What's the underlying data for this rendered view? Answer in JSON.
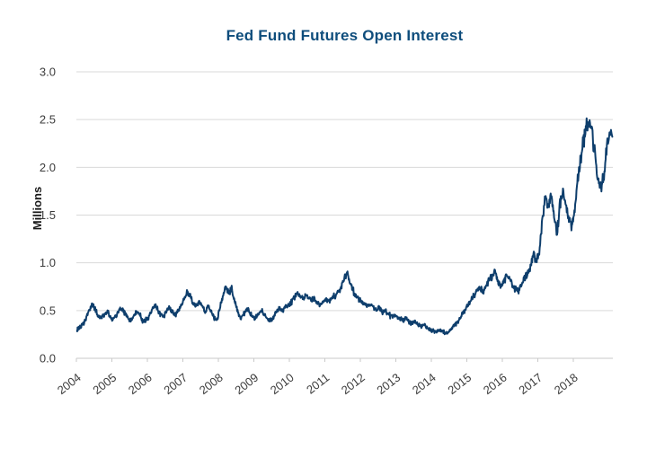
{
  "title": "Fed Fund Futures Open Interest",
  "colors": {
    "line": "#0e3e6c",
    "title": "#0e4d7c",
    "grid": "#d9d9d9",
    "axis": "#c9c9c9",
    "tick_text": "#3b3b3b"
  },
  "chart_data": {
    "type": "line",
    "title": "Fed Fund Futures Open Interest",
    "xlabel": "",
    "ylabel": "Millions",
    "ylim": [
      0.0,
      3.0
    ],
    "xlim": [
      2004,
      2019.1
    ],
    "y_ticks": [
      "0.0",
      "0.5",
      "1.0",
      "1.5",
      "2.0",
      "2.5",
      "3.0"
    ],
    "x_ticks": [
      "2004",
      "2005",
      "2006",
      "2007",
      "2008",
      "2009",
      "2010",
      "2011",
      "2012",
      "2013",
      "2014",
      "2015",
      "2016",
      "2017",
      "2018"
    ],
    "grid": "horizontal",
    "legend": "none",
    "series": [
      {
        "name": "Fed Fund Futures Open Interest (millions of contracts)",
        "start_year": 2004,
        "cadence": "monthly",
        "monthly_values": [
          0.3,
          0.33,
          0.37,
          0.44,
          0.52,
          0.56,
          0.5,
          0.44,
          0.42,
          0.46,
          0.48,
          0.43,
          0.41,
          0.45,
          0.5,
          0.52,
          0.46,
          0.41,
          0.4,
          0.45,
          0.49,
          0.46,
          0.37,
          0.41,
          0.44,
          0.5,
          0.55,
          0.51,
          0.46,
          0.44,
          0.5,
          0.54,
          0.48,
          0.45,
          0.5,
          0.56,
          0.62,
          0.7,
          0.64,
          0.57,
          0.54,
          0.6,
          0.55,
          0.49,
          0.54,
          0.5,
          0.42,
          0.4,
          0.52,
          0.65,
          0.76,
          0.68,
          0.72,
          0.6,
          0.5,
          0.42,
          0.46,
          0.52,
          0.48,
          0.44,
          0.42,
          0.46,
          0.5,
          0.46,
          0.42,
          0.39,
          0.43,
          0.48,
          0.52,
          0.49,
          0.53,
          0.56,
          0.58,
          0.63,
          0.67,
          0.66,
          0.62,
          0.66,
          0.63,
          0.6,
          0.63,
          0.58,
          0.56,
          0.6,
          0.62,
          0.6,
          0.63,
          0.66,
          0.7,
          0.74,
          0.82,
          0.9,
          0.79,
          0.71,
          0.65,
          0.61,
          0.6,
          0.57,
          0.55,
          0.57,
          0.53,
          0.5,
          0.53,
          0.48,
          0.5,
          0.46,
          0.44,
          0.46,
          0.44,
          0.42,
          0.4,
          0.42,
          0.38,
          0.36,
          0.38,
          0.35,
          0.33,
          0.35,
          0.32,
          0.3,
          0.29,
          0.28,
          0.3,
          0.28,
          0.27,
          0.28,
          0.3,
          0.33,
          0.37,
          0.41,
          0.46,
          0.51,
          0.56,
          0.62,
          0.66,
          0.7,
          0.74,
          0.7,
          0.76,
          0.82,
          0.86,
          0.9,
          0.8,
          0.76,
          0.8,
          0.86,
          0.83,
          0.77,
          0.72,
          0.7,
          0.78,
          0.85,
          0.9,
          0.96,
          1.1,
          1.0,
          1.1,
          1.42,
          1.72,
          1.58,
          1.7,
          1.48,
          1.3,
          1.62,
          1.74,
          1.6,
          1.45,
          1.38,
          1.58,
          1.88,
          2.08,
          2.28,
          2.42,
          2.48,
          2.33,
          2.08,
          1.85,
          1.8,
          1.95,
          2.28
        ],
        "final_point": [
          2019.1,
          2.32
        ]
      }
    ]
  }
}
